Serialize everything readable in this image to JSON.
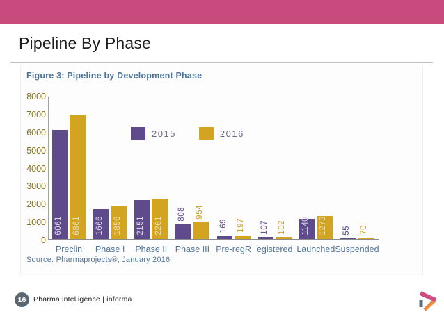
{
  "header": {
    "title": "Pipeline By Phase"
  },
  "colors": {
    "accent_pink": "#c84b7e",
    "purple": "#5f4b8b",
    "gold": "#d2a422",
    "slate_blue": "#4e7599",
    "tick_gold": "#84701a",
    "legend_text": "#6d6785",
    "axis_line": "#8c8c8c",
    "footer_gray": "#5b6771",
    "label_on_purple": "#ded7ea",
    "label_on_gold": "#ecdfb4",
    "outside_label_purple": "#5f4b8b",
    "outside_label_gold": "#c99e1e",
    "logo_pink": "#cf4b80",
    "logo_orange": "#ec8b3f",
    "logo_blue": "#5d6f7e"
  },
  "chart_data": {
    "type": "bar",
    "title": "Figure 3: Pipeline by Development Phase",
    "categories": [
      "Preclin",
      "Phase I",
      "Phase II",
      "Phase III",
      "Pre-regR",
      "egistered",
      "Launched",
      "Suspended"
    ],
    "series": [
      {
        "name": "2015",
        "color": "#5f4b8b",
        "values": [
          6061,
          1666,
          2151,
          808,
          169,
          107,
          1140,
          55
        ]
      },
      {
        "name": "2016",
        "color": "#d2a422",
        "values": [
          6861,
          1856,
          2261,
          954,
          197,
          102,
          1273,
          70
        ]
      }
    ],
    "ylim": [
      0,
      8000
    ],
    "ytick_step": 1000,
    "grid": false,
    "legend_position": "top-center",
    "source": "Source: Pharmaprojects®, January 2016"
  },
  "footer": {
    "page_number": "16",
    "brand": "Pharma intelligence | informa",
    "logo": "pharma-intelligence-play-triangle"
  }
}
